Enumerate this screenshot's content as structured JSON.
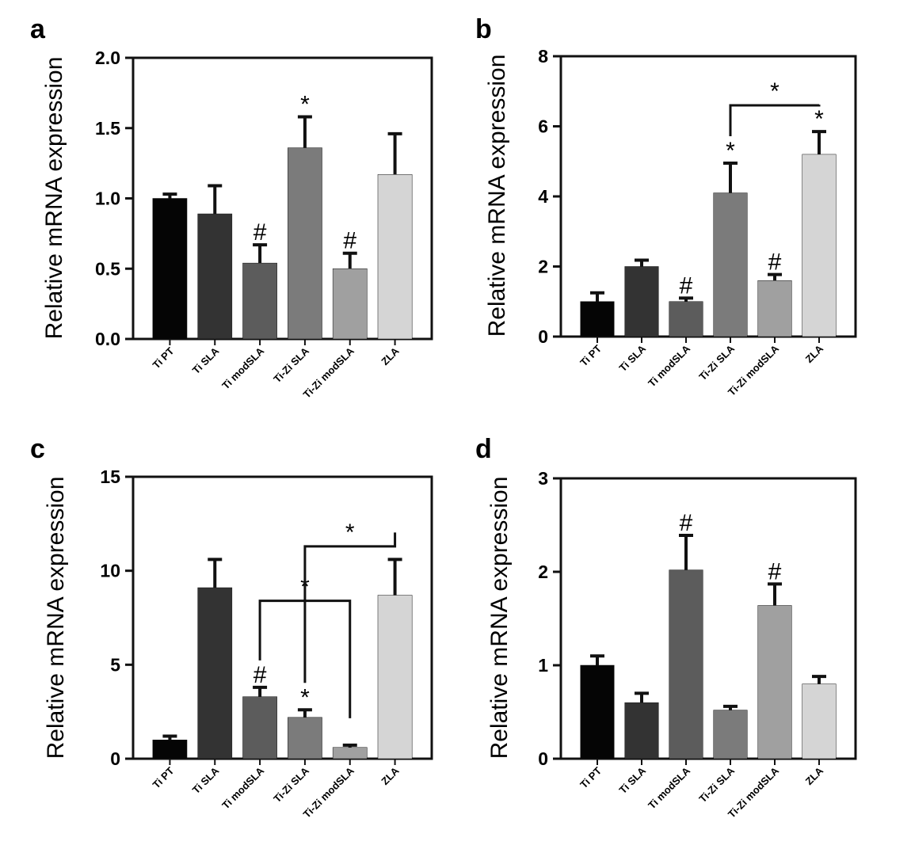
{
  "chart_data": [
    {
      "type": "bar",
      "panel": "a",
      "ylabel": "Relative mRNA expression",
      "categories": [
        "Ti PT",
        "Ti SLA",
        "Ti modSLA",
        "Ti-Zi SLA",
        "Ti-Zi modSLA",
        "ZLA"
      ],
      "values": [
        1.0,
        0.89,
        0.54,
        1.36,
        0.5,
        1.17
      ],
      "errors": [
        0.03,
        0.2,
        0.13,
        0.22,
        0.11,
        0.29
      ],
      "ylim": [
        0,
        2.0
      ],
      "yticks": [
        0,
        0.5,
        1.0,
        1.5,
        2.0
      ],
      "ytick_labels": [
        "0.0",
        "0.5",
        "1.0",
        "1.5",
        "2.0"
      ],
      "annotations": [
        "",
        "",
        "#",
        "*",
        "#",
        ""
      ],
      "brackets": []
    },
    {
      "type": "bar",
      "panel": "b",
      "ylabel": "Relative mRNA expression",
      "categories": [
        "Ti PT",
        "Ti SLA",
        "Ti modSLA",
        "Ti-Zi SLA",
        "Ti-Zi modSLA",
        "ZLA"
      ],
      "values": [
        1.0,
        2.0,
        1.0,
        4.1,
        1.6,
        5.2
      ],
      "errors": [
        0.25,
        0.18,
        0.1,
        0.85,
        0.17,
        0.65
      ],
      "ylim": [
        0,
        8
      ],
      "yticks": [
        0,
        2,
        4,
        6,
        8
      ],
      "ytick_labels": [
        "0",
        "2",
        "4",
        "6",
        "8"
      ],
      "annotations": [
        "",
        "",
        "#",
        "*",
        "#",
        "*"
      ],
      "brackets": [
        {
          "from": 3,
          "to": 5,
          "y": 6.6,
          "label": "*"
        }
      ]
    },
    {
      "type": "bar",
      "panel": "c",
      "ylabel": "Relative mRNA expression",
      "categories": [
        "Ti PT",
        "Ti SLA",
        "Ti modSLA",
        "Ti-Zi SLA",
        "Ti-Zi modSLA",
        "ZLA"
      ],
      "values": [
        1.0,
        9.1,
        3.3,
        2.2,
        0.6,
        8.7
      ],
      "errors": [
        0.2,
        1.5,
        0.5,
        0.4,
        0.12,
        1.9
      ],
      "ylim": [
        0,
        15
      ],
      "yticks": [
        0,
        5,
        10,
        15
      ],
      "ytick_labels": [
        "0",
        "5",
        "10",
        "15"
      ],
      "annotations": [
        "",
        "",
        "#",
        "*",
        "",
        ""
      ],
      "brackets": [
        {
          "from": 2,
          "to": 4,
          "y": 8.4,
          "label": "*"
        },
        {
          "from": 3,
          "to": 5,
          "y": 11.3,
          "label": "*"
        }
      ]
    },
    {
      "type": "bar",
      "panel": "d",
      "ylabel": "Relative mRNA expression",
      "categories": [
        "Ti PT",
        "Ti SLA",
        "Ti modSLA",
        "Ti-Zi SLA",
        "Ti-Zi modSLA",
        "ZLA"
      ],
      "values": [
        1.0,
        0.6,
        2.02,
        0.52,
        1.64,
        0.8
      ],
      "errors": [
        0.1,
        0.1,
        0.37,
        0.04,
        0.23,
        0.08
      ],
      "ylim": [
        0,
        3
      ],
      "yticks": [
        0,
        1,
        2,
        3
      ],
      "ytick_labels": [
        "0",
        "1",
        "2",
        "3"
      ],
      "annotations": [
        "",
        "",
        "#",
        "",
        "#",
        ""
      ],
      "brackets": []
    }
  ],
  "bar_colors": [
    "#050505",
    "#333333",
    "#5c5c5c",
    "#7b7b7b",
    "#a0a0a0",
    "#d5d5d5"
  ]
}
